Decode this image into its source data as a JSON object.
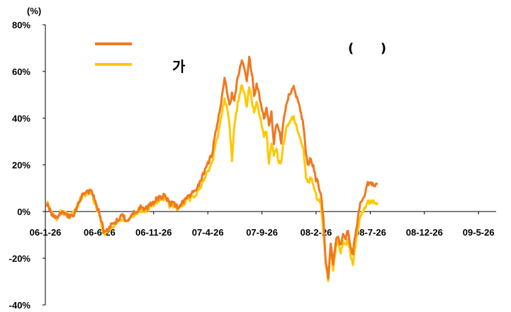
{
  "chart_data": {
    "type": "line",
    "y_unit": "(%)",
    "ylim": [
      -40,
      80
    ],
    "y_ticks": [
      80,
      60,
      40,
      20,
      0,
      -20,
      -40
    ],
    "y_tick_labels": [
      "80%",
      "60%",
      "40%",
      "20%",
      "0%",
      "-20%",
      "-40%"
    ],
    "x_tick_labels": [
      "06-1-26",
      "06-6-26",
      "06-11-26",
      "07-4-26",
      "07-9-26",
      "08-2-26",
      "08-7-26",
      "08-12-26",
      "09-5-26"
    ],
    "x_range": [
      "06-1-26",
      "09-6-30"
    ],
    "legend": {
      "placement": "top-left",
      "entries": [
        {
          "name": "",
          "color": "#F07820"
        },
        {
          "name": "",
          "color": "#FFC800"
        }
      ],
      "label_text": "가",
      "right_text": "(      )"
    },
    "series": [
      {
        "name": "",
        "color": "#F07820",
        "points": [
          [
            0,
            3
          ],
          [
            2,
            -1
          ],
          [
            4,
            -3
          ],
          [
            6,
            0
          ],
          [
            9,
            -2
          ],
          [
            11,
            -1
          ],
          [
            13,
            4
          ],
          [
            14,
            7
          ],
          [
            16,
            8
          ],
          [
            18,
            9
          ],
          [
            19,
            6
          ],
          [
            20,
            3
          ],
          [
            21,
            0
          ],
          [
            22,
            -4
          ],
          [
            23,
            -8
          ],
          [
            24,
            -9
          ],
          [
            25,
            -7
          ],
          [
            27,
            -5
          ],
          [
            29,
            -3
          ],
          [
            31,
            -2
          ],
          [
            32,
            -4
          ],
          [
            34,
            -2
          ],
          [
            36,
            0
          ],
          [
            38,
            2
          ],
          [
            40,
            1
          ],
          [
            42,
            3
          ],
          [
            44,
            5
          ],
          [
            46,
            6
          ],
          [
            48,
            7
          ],
          [
            50,
            3
          ],
          [
            51,
            4
          ],
          [
            53,
            2
          ],
          [
            55,
            4
          ],
          [
            57,
            6
          ],
          [
            59,
            8
          ],
          [
            61,
            10
          ],
          [
            63,
            15
          ],
          [
            65,
            20
          ],
          [
            67,
            25
          ],
          [
            68,
            32
          ],
          [
            69,
            37
          ],
          [
            70,
            43
          ],
          [
            71,
            50
          ],
          [
            72,
            58
          ],
          [
            73,
            52
          ],
          [
            74,
            46
          ],
          [
            75,
            50
          ],
          [
            76,
            47
          ],
          [
            77,
            55
          ],
          [
            78,
            60
          ],
          [
            79,
            65
          ],
          [
            80,
            62
          ],
          [
            81,
            56
          ],
          [
            82,
            66
          ],
          [
            83,
            60
          ],
          [
            84,
            50
          ],
          [
            85,
            55
          ],
          [
            86,
            50
          ],
          [
            87,
            45
          ],
          [
            88,
            40
          ],
          [
            89,
            44
          ],
          [
            90,
            37
          ],
          [
            91,
            42
          ],
          [
            92,
            30
          ],
          [
            93,
            38
          ],
          [
            94,
            35
          ],
          [
            95,
            30
          ],
          [
            96,
            40
          ],
          [
            97,
            46
          ],
          [
            98,
            50
          ],
          [
            99,
            52
          ],
          [
            100,
            53
          ],
          [
            101,
            50
          ],
          [
            102,
            47
          ],
          [
            103,
            42
          ],
          [
            104,
            37
          ],
          [
            105,
            24
          ],
          [
            106,
            20
          ],
          [
            107,
            23
          ],
          [
            108,
            19
          ],
          [
            109,
            14
          ],
          [
            110,
            12
          ],
          [
            111,
            7
          ],
          [
            112,
            -2
          ],
          [
            113,
            -22
          ],
          [
            114,
            -28
          ],
          [
            115,
            -14
          ],
          [
            116,
            -22
          ],
          [
            117,
            -13
          ],
          [
            118,
            -10
          ],
          [
            119,
            -15
          ],
          [
            120,
            -10
          ],
          [
            121,
            -12
          ],
          [
            122,
            -8
          ],
          [
            123,
            -15
          ],
          [
            124,
            -18
          ],
          [
            125,
            -10
          ],
          [
            126,
            -3
          ],
          [
            127,
            4
          ],
          [
            128,
            6
          ],
          [
            129,
            8
          ],
          [
            130,
            12
          ],
          [
            131,
            11
          ],
          [
            132,
            13
          ],
          [
            133,
            11
          ],
          [
            134,
            12
          ]
        ]
      },
      {
        "name": "",
        "color": "#FFC800",
        "points": [
          [
            0,
            4
          ],
          [
            2,
            -1
          ],
          [
            4,
            -3
          ],
          [
            6,
            0
          ],
          [
            9,
            -2
          ],
          [
            11,
            -1
          ],
          [
            13,
            4
          ],
          [
            14,
            6
          ],
          [
            16,
            8
          ],
          [
            18,
            8
          ],
          [
            19,
            5
          ],
          [
            20,
            2
          ],
          [
            21,
            -1
          ],
          [
            22,
            -5
          ],
          [
            23,
            -9
          ],
          [
            24,
            -9
          ],
          [
            25,
            -8
          ],
          [
            27,
            -6
          ],
          [
            29,
            -4
          ],
          [
            31,
            -3
          ],
          [
            32,
            -4
          ],
          [
            34,
            -3
          ],
          [
            36,
            -1
          ],
          [
            38,
            1
          ],
          [
            40,
            0
          ],
          [
            42,
            2
          ],
          [
            44,
            4
          ],
          [
            46,
            5
          ],
          [
            48,
            6
          ],
          [
            50,
            2
          ],
          [
            51,
            3
          ],
          [
            53,
            1
          ],
          [
            55,
            3
          ],
          [
            57,
            5
          ],
          [
            59,
            6
          ],
          [
            61,
            8
          ],
          [
            63,
            12
          ],
          [
            65,
            17
          ],
          [
            67,
            21
          ],
          [
            68,
            27
          ],
          [
            69,
            31
          ],
          [
            70,
            36
          ],
          [
            71,
            42
          ],
          [
            72,
            49
          ],
          [
            73,
            44
          ],
          [
            74,
            38
          ],
          [
            75,
            22
          ],
          [
            76,
            38
          ],
          [
            77,
            44
          ],
          [
            78,
            50
          ],
          [
            79,
            54
          ],
          [
            80,
            50
          ],
          [
            81,
            45
          ],
          [
            82,
            53
          ],
          [
            83,
            48
          ],
          [
            84,
            42
          ],
          [
            85,
            46
          ],
          [
            86,
            42
          ],
          [
            87,
            37
          ],
          [
            88,
            32
          ],
          [
            89,
            35
          ],
          [
            90,
            20
          ],
          [
            91,
            30
          ],
          [
            92,
            24
          ],
          [
            93,
            28
          ],
          [
            94,
            20
          ],
          [
            95,
            22
          ],
          [
            96,
            30
          ],
          [
            97,
            36
          ],
          [
            98,
            38
          ],
          [
            99,
            40
          ],
          [
            100,
            40
          ],
          [
            101,
            37
          ],
          [
            102,
            34
          ],
          [
            103,
            30
          ],
          [
            104,
            26
          ],
          [
            105,
            15
          ],
          [
            106,
            13
          ],
          [
            107,
            14
          ],
          [
            108,
            12
          ],
          [
            109,
            8
          ],
          [
            110,
            4
          ],
          [
            111,
            5
          ],
          [
            112,
            -8
          ],
          [
            113,
            -22
          ],
          [
            114,
            -29
          ],
          [
            115,
            -16
          ],
          [
            116,
            -25
          ],
          [
            117,
            -16
          ],
          [
            118,
            -13
          ],
          [
            119,
            -18
          ],
          [
            120,
            -13
          ],
          [
            121,
            -15
          ],
          [
            122,
            -11
          ],
          [
            123,
            -19
          ],
          [
            124,
            -23
          ],
          [
            125,
            -14
          ],
          [
            126,
            -7
          ],
          [
            127,
            -2
          ],
          [
            128,
            0
          ],
          [
            129,
            2
          ],
          [
            130,
            5
          ],
          [
            131,
            3
          ],
          [
            132,
            5
          ],
          [
            133,
            3
          ],
          [
            134,
            4
          ]
        ]
      }
    ]
  }
}
